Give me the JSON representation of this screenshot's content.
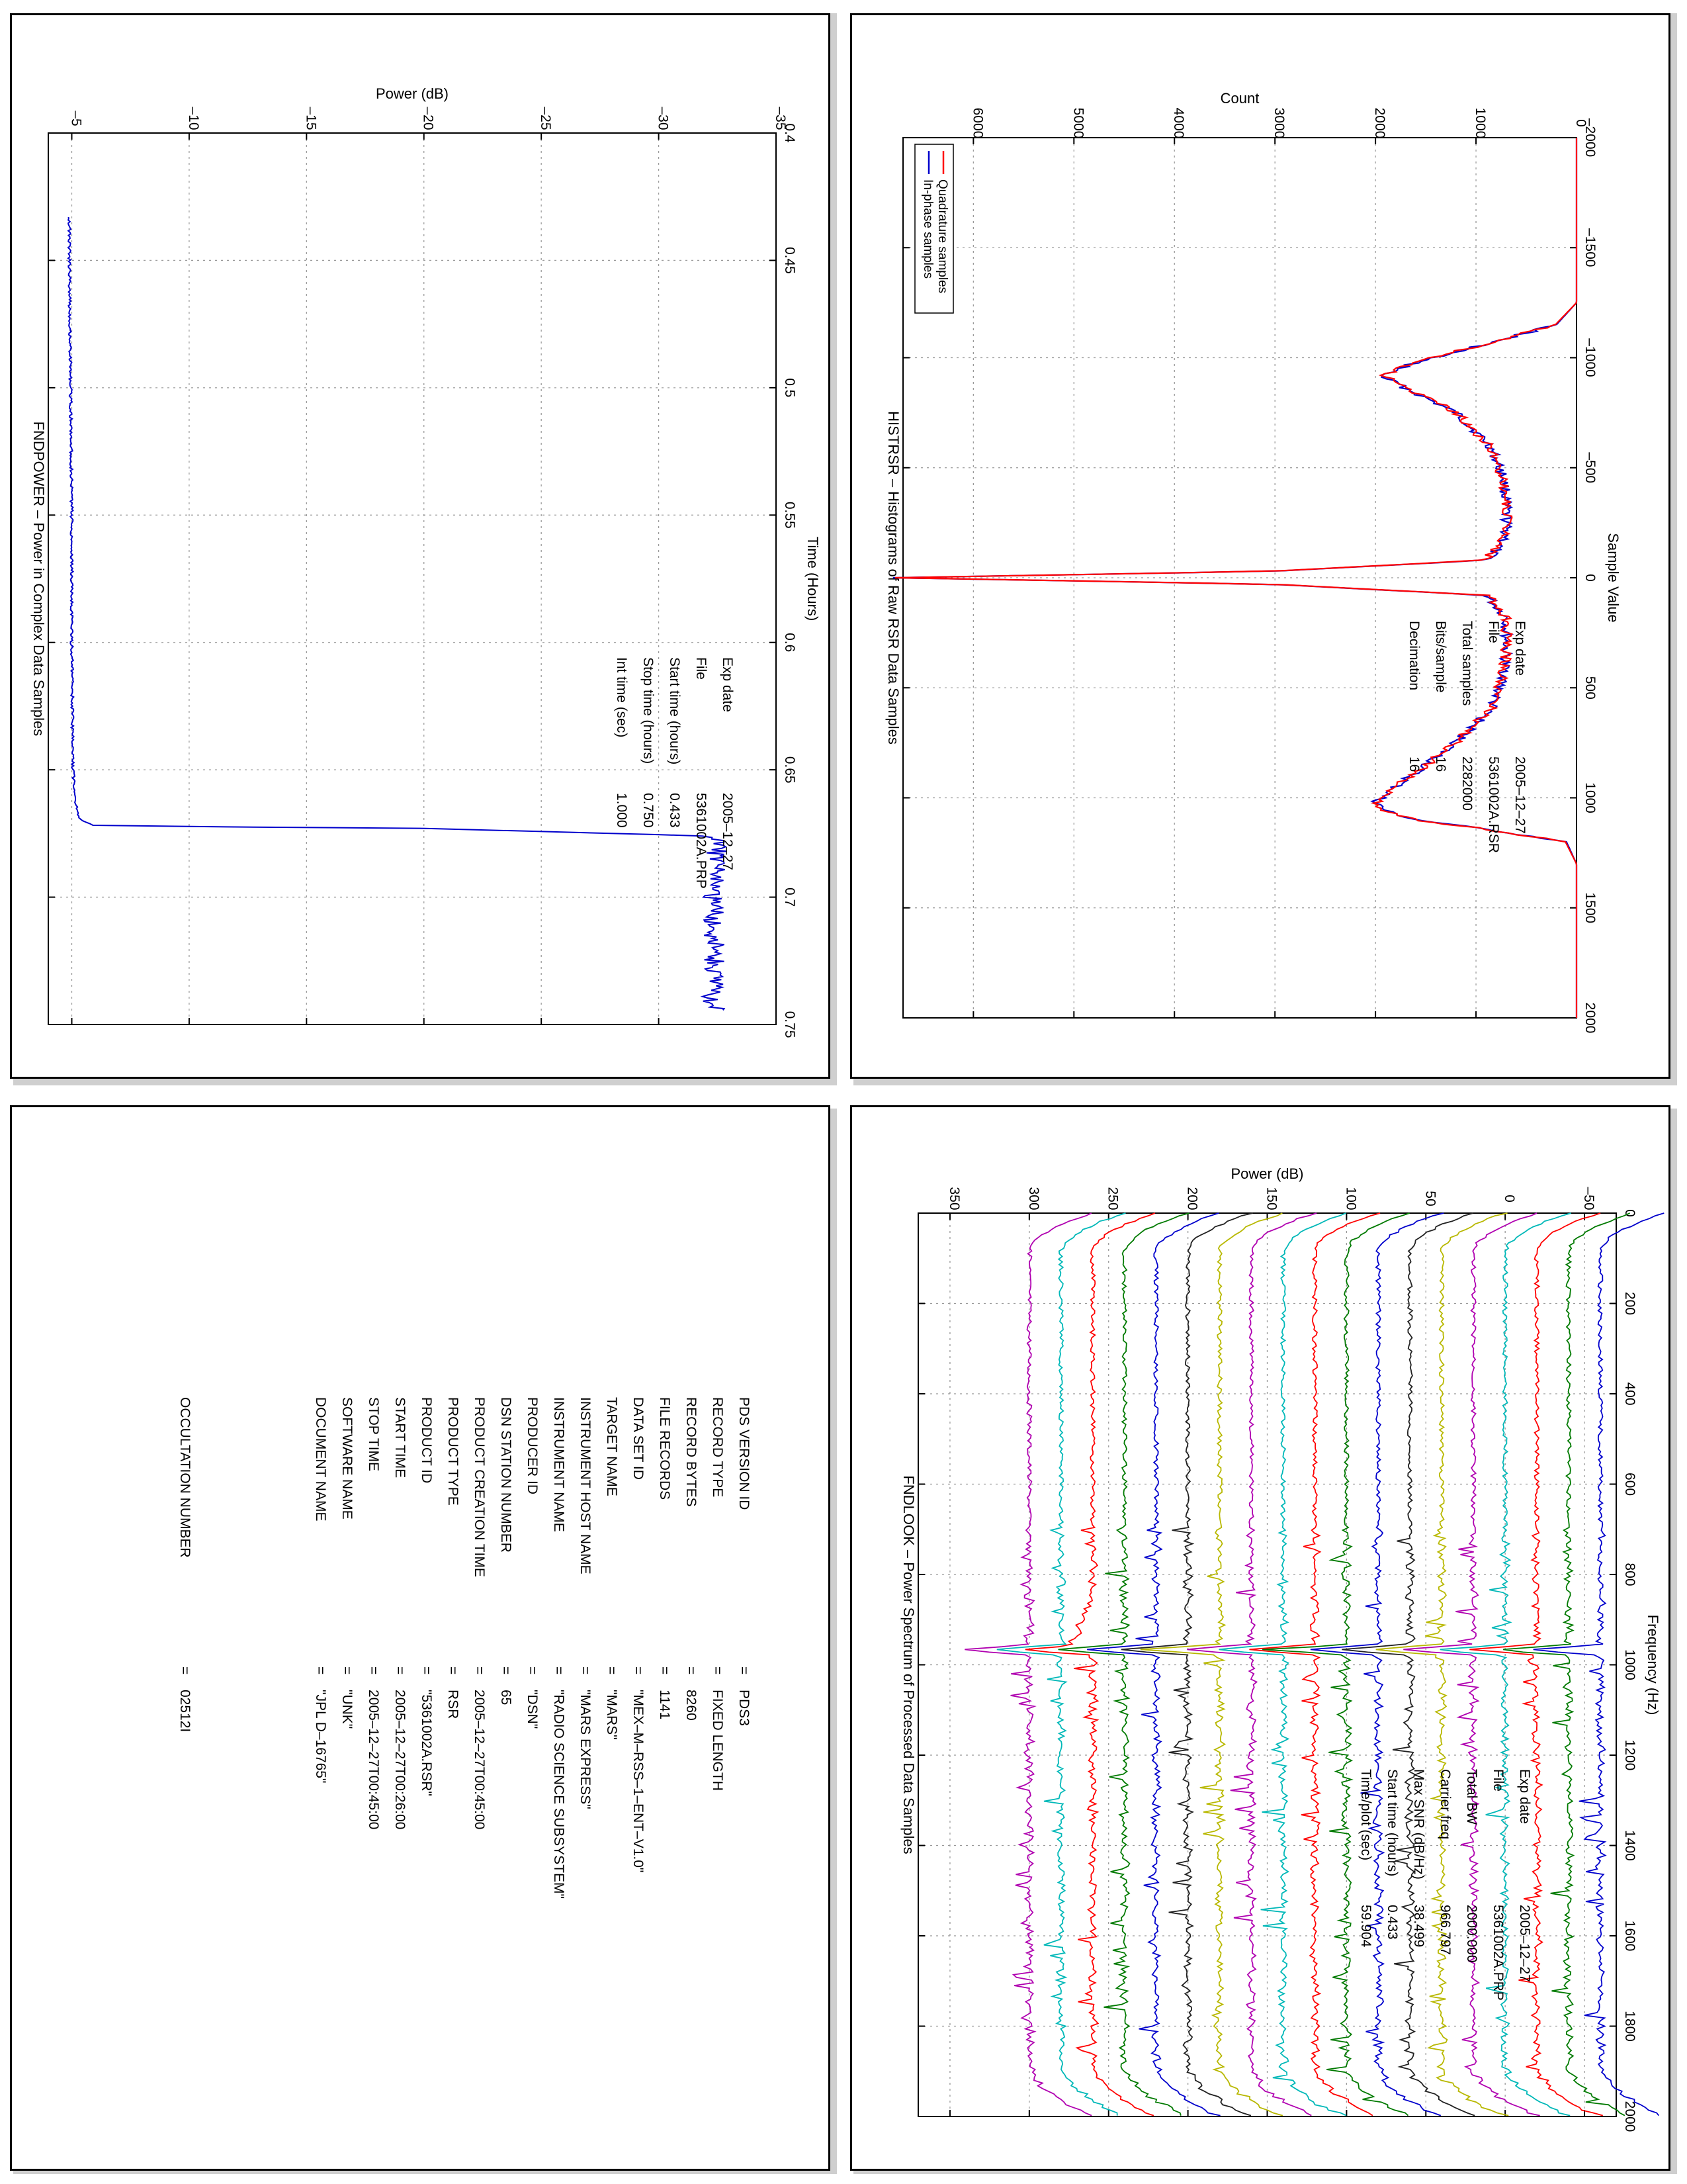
{
  "colors": {
    "blue": "#0000cc",
    "red": "#ff0000",
    "green": "#007a00",
    "cyan": "#00b8b8",
    "magenta": "#b000b0",
    "olive": "#b8b800",
    "black": "#222222",
    "grid": "#9a9a9a"
  },
  "panels": {
    "histrsr": {
      "title": "HISTRSR – Histograms of Raw RSR Data Samples",
      "info": [
        {
          "label": "Exp date",
          "value": "2005–12–27"
        },
        {
          "label": "File",
          "value": "5361002A.RSR"
        },
        {
          "label": "Total samples",
          "value": "2282000"
        },
        {
          "label": "Bits/sample",
          "value": "16"
        },
        {
          "label": "Decimation",
          "value": "16"
        }
      ],
      "legend": [
        "In-phase samples",
        "Quadrature samples"
      ]
    },
    "fndpower": {
      "title": "FNDPOWER – Power in Complex Data Samples",
      "info": [
        {
          "label": "Exp date",
          "value": "2005–12–27"
        },
        {
          "label": "File",
          "value": "5361002A.PRP"
        },
        {
          "label": "Start time (hours)",
          "value": "0.433"
        },
        {
          "label": "Stop time (hours)",
          "value": "0.750"
        },
        {
          "label": "Int time (sec)",
          "value": "1.000"
        }
      ]
    },
    "fndlook": {
      "title": "FNDLOOK – Power Spectrum of Processed Data Samples",
      "info": [
        {
          "label": "Exp date",
          "value": "2005–12–27"
        },
        {
          "label": "File",
          "value": "5361002A.PRP"
        },
        {
          "label": "Total BW",
          "value": "2000.000"
        },
        {
          "label": "Carrier freq",
          "value": "966.797"
        },
        {
          "label": "Max SNR (dB/Hz)",
          "value": "38.499"
        },
        {
          "label": "Start time (hours)",
          "value": "0.433"
        },
        {
          "label": "Time/plot (sec)",
          "value": "59.904"
        }
      ]
    },
    "label": {
      "rows": [
        {
          "key": "PDS VERSION ID",
          "value": "PDS3"
        },
        {
          "key": "RECORD TYPE",
          "value": "FIXED LENGTH"
        },
        {
          "key": "RECORD BYTES",
          "value": "8260"
        },
        {
          "key": "FILE RECORDS",
          "value": "1141"
        },
        {
          "key": "DATA SET ID",
          "value": "\"MEX–M–RSS–1–ENT–V1.0\""
        },
        {
          "key": "TARGET NAME",
          "value": "\"MARS\""
        },
        {
          "key": "INSTRUMENT HOST NAME",
          "value": "\"MARS EXPRESS\""
        },
        {
          "key": "INSTRUMENT NAME",
          "value": "\"RADIO SCIENCE SUBSYSTEM\""
        },
        {
          "key": "PRODUCER ID",
          "value": "\"DSN\""
        },
        {
          "key": "DSN STATION NUMBER",
          "value": "65"
        },
        {
          "key": "PRODUCT CREATION TIME",
          "value": "2005–12–27T00:45:00"
        },
        {
          "key": "PRODUCT TYPE",
          "value": "RSR"
        },
        {
          "key": "PRODUCT ID",
          "value": "\"5361002A.RSR\""
        },
        {
          "key": "START TIME",
          "value": "2005–12–27T00:26:00"
        },
        {
          "key": "STOP TIME",
          "value": "2005–12–27T00:45:00"
        },
        {
          "key": "SOFTWARE NAME",
          "value": "\"UNK\""
        },
        {
          "key": "DOCUMENT NAME",
          "value": "\"JPL D–16765\""
        }
      ],
      "occultation": {
        "key": "OCCULTATION NUMBER",
        "value": "02512I"
      }
    }
  },
  "chart_data": [
    {
      "id": "histrsr",
      "type": "line",
      "title": "HISTRSR – Histograms of Raw RSR Data Samples",
      "xlabel": "Sample Value",
      "ylabel": "Count",
      "xlim": [
        -2000,
        2000
      ],
      "ylim": [
        0,
        6700
      ],
      "xticks": [
        -2000,
        -1500,
        -1000,
        -500,
        0,
        500,
        1000,
        1500,
        2000
      ],
      "yticks": [
        0,
        1000,
        2000,
        3000,
        4000,
        5000,
        6000
      ],
      "grid": true,
      "legend_position": "top-right",
      "series": [
        {
          "name": "In-phase samples",
          "color": "#0000cc",
          "x": [
            -2000,
            -1250,
            -1150,
            -1050,
            -980,
            -950,
            -920,
            -850,
            -750,
            -600,
            -450,
            -300,
            -180,
            -80,
            -30,
            0,
            30,
            80,
            180,
            300,
            450,
            600,
            750,
            850,
            950,
            1020,
            1060,
            1100,
            1150,
            1200,
            1300,
            2000
          ],
          "y": [
            0,
            0,
            200,
            1000,
            1600,
            1750,
            1950,
            1650,
            1200,
            860,
            720,
            700,
            700,
            900,
            3000,
            6800,
            3000,
            900,
            700,
            700,
            720,
            860,
            1200,
            1500,
            1800,
            2000,
            1900,
            1600,
            800,
            100,
            0,
            0
          ]
        },
        {
          "name": "Quadrature samples",
          "color": "#ff0000",
          "x": [
            -2000,
            -1250,
            -1150,
            -1050,
            -980,
            -950,
            -920,
            -850,
            -750,
            -600,
            -450,
            -300,
            -180,
            -80,
            -30,
            0,
            30,
            80,
            180,
            300,
            450,
            600,
            750,
            850,
            950,
            1020,
            1060,
            1100,
            1150,
            1200,
            1300,
            2000
          ],
          "y": [
            0,
            0,
            210,
            1010,
            1620,
            1760,
            1930,
            1640,
            1190,
            870,
            730,
            690,
            710,
            910,
            3020,
            6780,
            2980,
            890,
            710,
            690,
            730,
            850,
            1210,
            1490,
            1810,
            1990,
            1890,
            1590,
            790,
            110,
            0,
            0
          ]
        }
      ]
    },
    {
      "id": "fndpower",
      "type": "line",
      "title": "FNDPOWER – Power in Complex Data Samples",
      "xlabel": "Time (Hours)",
      "ylabel": "Power (dB)",
      "xlim": [
        0.4,
        0.75
      ],
      "ylim": [
        -35,
        -4
      ],
      "xticks": [
        0.4,
        0.45,
        0.5,
        0.55,
        0.6,
        0.65,
        0.7,
        0.75
      ],
      "yticks": [
        -35,
        -30,
        -25,
        -20,
        -15,
        -10,
        -5
      ],
      "grid": true,
      "series": [
        {
          "name": "",
          "color": "#0000cc",
          "x": [
            0.433,
            0.45,
            0.5,
            0.55,
            0.6,
            0.65,
            0.665,
            0.67,
            0.672,
            0.673,
            0.676,
            0.68,
            0.7,
            0.72,
            0.74,
            0.745
          ],
          "y": [
            -4.9,
            -4.9,
            -4.95,
            -5.0,
            -5.0,
            -5.05,
            -5.2,
            -5.4,
            -6.0,
            -20,
            -32.2,
            -32.5,
            -32.3,
            -32.4,
            -32.3,
            -32.4
          ]
        }
      ]
    },
    {
      "id": "fndlook",
      "type": "line",
      "title": "FNDLOOK – Power Spectrum of Processed Data Samples",
      "xlabel": "Frequency (Hz)",
      "ylabel": "Power (dB)",
      "xlim": [
        0,
        2000
      ],
      "ylim": [
        -70,
        370
      ],
      "xticks": [
        0,
        200,
        400,
        600,
        800,
        1000,
        1200,
        1400,
        1600,
        1800,
        2000
      ],
      "yticks": [
        -50,
        0,
        50,
        100,
        150,
        200,
        250,
        300,
        350
      ],
      "grid": true,
      "carrier_freq": 966.797,
      "offsets": [
        -60,
        -40,
        -20,
        0,
        20,
        40,
        60,
        80,
        100,
        120,
        140,
        160,
        180,
        200,
        220,
        240,
        260,
        280,
        300
      ],
      "colors": [
        "#0000cc",
        "#007a00",
        "#ff0000",
        "#00b8b8",
        "#b000b0",
        "#b8b800",
        "#222222",
        "#0000cc",
        "#007a00",
        "#ff0000",
        "#00b8b8",
        "#b000b0",
        "#b8b800",
        "#222222",
        "#0000cc",
        "#007a00",
        "#ff0000",
        "#00b8b8",
        "#b000b0"
      ]
    }
  ]
}
